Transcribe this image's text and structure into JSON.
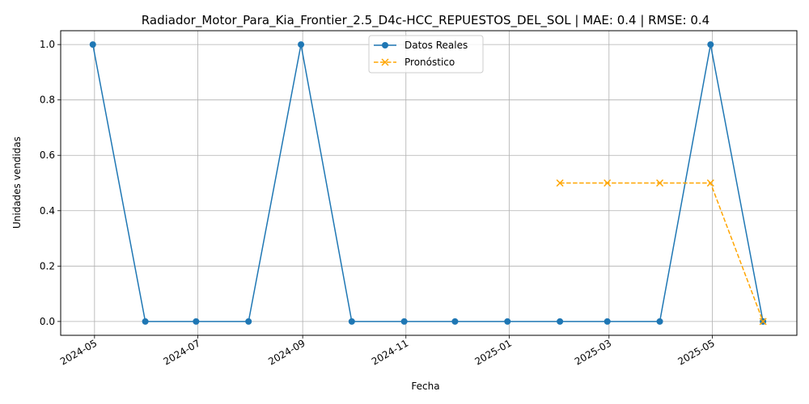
{
  "chart_data": {
    "type": "line",
    "title": "Radiador_Motor_Para_Kia_Frontier_2.5_D4c-HCC_REPUESTOS_DEL_SOL | MAE: 0.4 | RMSE: 0.4",
    "xlabel": "Fecha",
    "ylabel": "Unidades vendidas",
    "xlim": [
      "2024-04-11",
      "2025-06-20"
    ],
    "ylim": [
      -0.05,
      1.05
    ],
    "grid": true,
    "legend_position": "upper-center",
    "x_ticks": [
      "2024-05-01",
      "2024-07-01",
      "2024-09-01",
      "2024-11-01",
      "2025-01-01",
      "2025-03-01",
      "2025-05-01"
    ],
    "x_tick_labels": [
      "2024-05",
      "2024-07",
      "2024-09",
      "2024-11",
      "2025-01",
      "2025-03",
      "2025-05"
    ],
    "y_ticks": [
      0.0,
      0.2,
      0.4,
      0.6,
      0.8,
      1.0
    ],
    "y_tick_labels": [
      "0.0",
      "0.2",
      "0.4",
      "0.6",
      "0.8",
      "1.0"
    ],
    "series": [
      {
        "name": "Datos Reales",
        "color": "#1f77b4",
        "marker": "circle",
        "linestyle": "solid",
        "x": [
          "2024-04-30",
          "2024-05-31",
          "2024-06-30",
          "2024-07-31",
          "2024-08-31",
          "2024-09-30",
          "2024-10-31",
          "2024-11-30",
          "2024-12-31",
          "2025-01-31",
          "2025-02-28",
          "2025-03-31",
          "2025-04-30",
          "2025-05-31"
        ],
        "values": [
          1,
          0,
          0,
          0,
          1,
          0,
          0,
          0,
          0,
          0,
          0,
          0,
          1,
          0
        ]
      },
      {
        "name": "Pronóstico",
        "color": "#ffa500",
        "marker": "x",
        "linestyle": "dashed",
        "x": [
          "2025-01-31",
          "2025-02-28",
          "2025-03-31",
          "2025-04-30",
          "2025-05-31"
        ],
        "values": [
          0.5,
          0.5,
          0.5,
          0.5,
          0.0
        ]
      }
    ]
  }
}
